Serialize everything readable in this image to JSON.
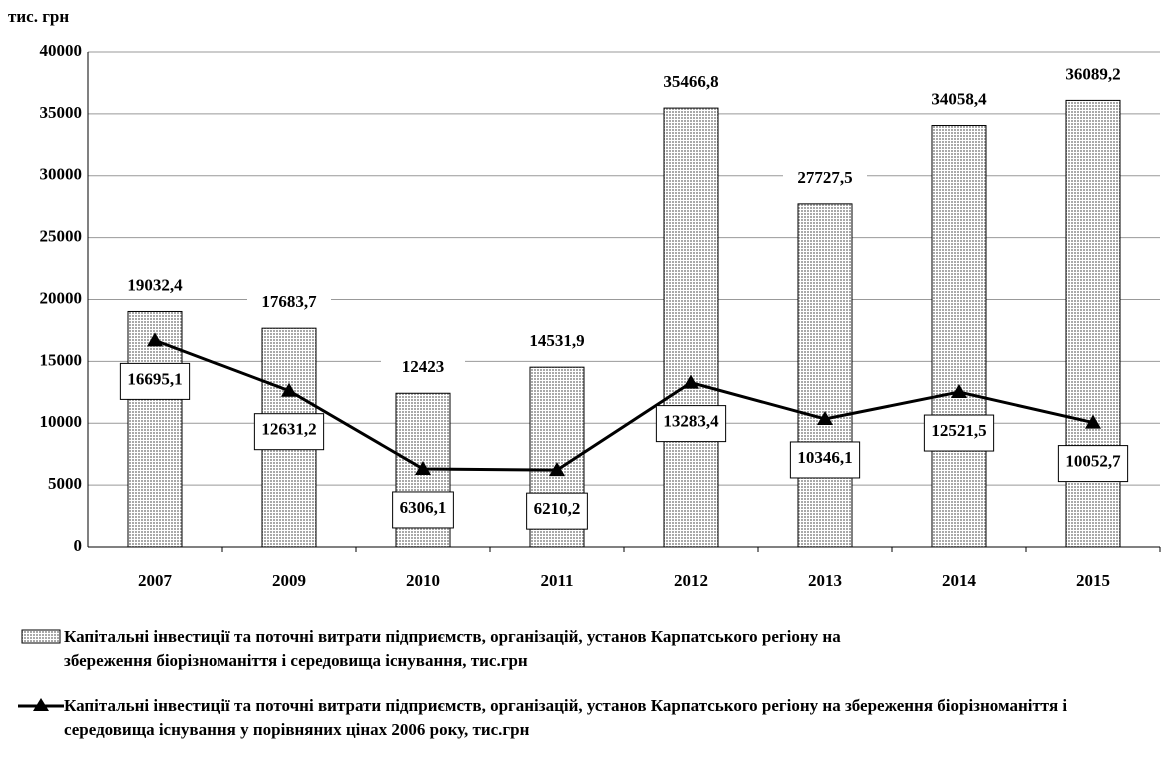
{
  "chart_data": {
    "type": "combo",
    "y_label": "тис. грн",
    "categories": [
      "2007",
      "2009",
      "2010",
      "2011",
      "2012",
      "2013",
      "2014",
      "2015"
    ],
    "series": [
      {
        "name": "Капітальні інвестиції та поточні витрати підприємств, організацій, установ Карпатського регіону на збереження біорізноманіття і середовища існування, тис.грн",
        "type": "bar",
        "color": "#a9a9a9",
        "values": [
          19032.4,
          17683.7,
          12423,
          14531.9,
          35466.8,
          27727.5,
          34058.4,
          36089.2
        ],
        "value_labels": [
          "19032,4",
          "17683,7",
          "12423",
          "14531,9",
          "35466,8",
          "27727,5",
          "34058,4",
          "36089,2"
        ]
      },
      {
        "name": "Капітальні інвестиції та поточні витрати підприємств, організацій, установ Карпатського регіону на збереження біорізноманіття і середовища існування у порівняних цінах 2006 року, тис.грн",
        "type": "line",
        "color": "#000000",
        "values": [
          16695.1,
          12631.2,
          6306.1,
          6210.2,
          13283.4,
          10346.1,
          12521.5,
          10052.7
        ],
        "value_labels": [
          "16695,1",
          "12631,2",
          "6306,1",
          "6210,2",
          "13283,4",
          "10346,1",
          "12521,5",
          "10052,7"
        ]
      }
    ],
    "ylim": [
      0,
      40000
    ],
    "yticks": [
      0,
      5000,
      10000,
      15000,
      20000,
      25000,
      30000,
      35000,
      40000
    ],
    "grid": true
  }
}
